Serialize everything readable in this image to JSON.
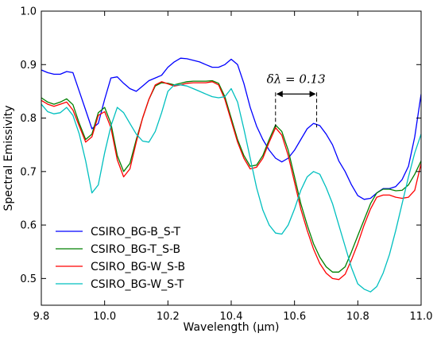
{
  "chart_data": {
    "type": "line",
    "title": "",
    "xlabel": "Wavelength (μm)",
    "ylabel": "Spectral Emissivity",
    "xlim": [
      9.8,
      11.0
    ],
    "ylim": [
      0.45,
      1.0
    ],
    "xticks": [
      9.8,
      10.0,
      10.2,
      10.4,
      10.6,
      10.8,
      11.0
    ],
    "xtick_labels": [
      "9.8",
      "10.0",
      "10.2",
      "10.4",
      "10.6",
      "10.8",
      "11.0"
    ],
    "yticks": [
      0.5,
      0.6,
      0.7,
      0.8,
      0.9,
      1.0
    ],
    "ytick_labels": [
      "0.5",
      "0.6",
      "0.7",
      "0.8",
      "0.9",
      "1.0"
    ],
    "grid": false,
    "legend_position": "lower-left",
    "annotation": {
      "text": "δλ = 0.13",
      "x_start": 10.54,
      "x_end": 10.67,
      "y": 0.845
    },
    "series": [
      {
        "name": "CSIRO_BG-B_S-T",
        "color": "#0000ff",
        "x": [
          9.8,
          9.82,
          9.84,
          9.86,
          9.88,
          9.9,
          9.92,
          9.94,
          9.96,
          9.98,
          10.0,
          10.02,
          10.04,
          10.06,
          10.08,
          10.1,
          10.12,
          10.14,
          10.16,
          10.18,
          10.2,
          10.22,
          10.24,
          10.26,
          10.28,
          10.3,
          10.32,
          10.34,
          10.36,
          10.38,
          10.4,
          10.42,
          10.44,
          10.46,
          10.48,
          10.5,
          10.52,
          10.54,
          10.56,
          10.58,
          10.6,
          10.62,
          10.64,
          10.66,
          10.68,
          10.7,
          10.72,
          10.74,
          10.76,
          10.78,
          10.8,
          10.82,
          10.84,
          10.86,
          10.88,
          10.9,
          10.92,
          10.94,
          10.96,
          10.98,
          11.0
        ],
        "y": [
          0.89,
          0.885,
          0.882,
          0.882,
          0.887,
          0.885,
          0.85,
          0.815,
          0.78,
          0.79,
          0.835,
          0.875,
          0.877,
          0.865,
          0.855,
          0.85,
          0.86,
          0.87,
          0.875,
          0.88,
          0.895,
          0.905,
          0.912,
          0.911,
          0.908,
          0.905,
          0.9,
          0.895,
          0.895,
          0.9,
          0.91,
          0.9,
          0.865,
          0.82,
          0.785,
          0.76,
          0.74,
          0.725,
          0.718,
          0.725,
          0.74,
          0.76,
          0.78,
          0.79,
          0.786,
          0.77,
          0.75,
          0.72,
          0.7,
          0.675,
          0.655,
          0.648,
          0.65,
          0.66,
          0.668,
          0.668,
          0.672,
          0.685,
          0.71,
          0.765,
          0.845
        ]
      },
      {
        "name": "CSIRO_BG-T_S-B",
        "color": "#008000",
        "x": [
          9.8,
          9.82,
          9.84,
          9.86,
          9.88,
          9.9,
          9.92,
          9.94,
          9.96,
          9.98,
          10.0,
          10.02,
          10.04,
          10.06,
          10.08,
          10.1,
          10.12,
          10.14,
          10.16,
          10.18,
          10.2,
          10.22,
          10.24,
          10.26,
          10.28,
          10.3,
          10.32,
          10.34,
          10.36,
          10.38,
          10.4,
          10.42,
          10.44,
          10.46,
          10.48,
          10.5,
          10.52,
          10.54,
          10.56,
          10.58,
          10.6,
          10.62,
          10.64,
          10.66,
          10.68,
          10.7,
          10.72,
          10.74,
          10.76,
          10.78,
          10.8,
          10.82,
          10.84,
          10.86,
          10.88,
          10.9,
          10.92,
          10.94,
          10.96,
          10.98,
          11.0
        ],
        "y": [
          0.838,
          0.83,
          0.826,
          0.83,
          0.836,
          0.825,
          0.79,
          0.76,
          0.77,
          0.81,
          0.82,
          0.79,
          0.73,
          0.7,
          0.715,
          0.76,
          0.8,
          0.835,
          0.86,
          0.866,
          0.865,
          0.862,
          0.865,
          0.868,
          0.869,
          0.869,
          0.869,
          0.87,
          0.865,
          0.84,
          0.8,
          0.76,
          0.73,
          0.71,
          0.712,
          0.73,
          0.76,
          0.787,
          0.775,
          0.74,
          0.69,
          0.64,
          0.6,
          0.565,
          0.54,
          0.522,
          0.512,
          0.512,
          0.522,
          0.55,
          0.58,
          0.61,
          0.64,
          0.66,
          0.667,
          0.667,
          0.664,
          0.665,
          0.675,
          0.695,
          0.72
        ]
      },
      {
        "name": "CSIRO_BG-W_S-B",
        "color": "#ff0000",
        "x": [
          9.8,
          9.82,
          9.84,
          9.86,
          9.88,
          9.9,
          9.92,
          9.94,
          9.96,
          9.98,
          10.0,
          10.02,
          10.04,
          10.06,
          10.08,
          10.1,
          10.12,
          10.14,
          10.16,
          10.18,
          10.2,
          10.22,
          10.24,
          10.26,
          10.28,
          10.3,
          10.32,
          10.34,
          10.36,
          10.38,
          10.4,
          10.42,
          10.44,
          10.46,
          10.48,
          10.5,
          10.52,
          10.54,
          10.56,
          10.58,
          10.6,
          10.62,
          10.64,
          10.66,
          10.68,
          10.7,
          10.72,
          10.74,
          10.76,
          10.78,
          10.8,
          10.82,
          10.84,
          10.86,
          10.88,
          10.9,
          10.92,
          10.94,
          10.96,
          10.98,
          11.0
        ],
        "y": [
          0.833,
          0.826,
          0.822,
          0.826,
          0.83,
          0.815,
          0.785,
          0.755,
          0.765,
          0.805,
          0.812,
          0.782,
          0.722,
          0.69,
          0.705,
          0.755,
          0.8,
          0.835,
          0.862,
          0.868,
          0.864,
          0.86,
          0.862,
          0.865,
          0.866,
          0.866,
          0.866,
          0.868,
          0.862,
          0.835,
          0.795,
          0.755,
          0.725,
          0.705,
          0.708,
          0.725,
          0.755,
          0.782,
          0.768,
          0.73,
          0.68,
          0.63,
          0.59,
          0.555,
          0.528,
          0.51,
          0.5,
          0.498,
          0.508,
          0.535,
          0.565,
          0.6,
          0.63,
          0.652,
          0.656,
          0.656,
          0.652,
          0.65,
          0.652,
          0.665,
          0.715
        ]
      },
      {
        "name": "CSIRO_BG-W_S-T",
        "color": "#00bfbf",
        "x": [
          9.8,
          9.82,
          9.84,
          9.86,
          9.88,
          9.9,
          9.92,
          9.94,
          9.96,
          9.98,
          10.0,
          10.02,
          10.04,
          10.06,
          10.08,
          10.1,
          10.12,
          10.14,
          10.16,
          10.18,
          10.2,
          10.22,
          10.24,
          10.26,
          10.28,
          10.3,
          10.32,
          10.34,
          10.36,
          10.38,
          10.4,
          10.42,
          10.44,
          10.46,
          10.48,
          10.5,
          10.52,
          10.54,
          10.56,
          10.58,
          10.6,
          10.62,
          10.64,
          10.66,
          10.68,
          10.7,
          10.72,
          10.74,
          10.76,
          10.78,
          10.8,
          10.82,
          10.84,
          10.86,
          10.88,
          10.9,
          10.92,
          10.94,
          10.96,
          10.98,
          11.0
        ],
        "y": [
          0.826,
          0.812,
          0.808,
          0.81,
          0.82,
          0.805,
          0.77,
          0.72,
          0.66,
          0.675,
          0.735,
          0.785,
          0.82,
          0.81,
          0.79,
          0.77,
          0.757,
          0.755,
          0.775,
          0.81,
          0.85,
          0.862,
          0.862,
          0.86,
          0.855,
          0.85,
          0.845,
          0.84,
          0.838,
          0.84,
          0.855,
          0.83,
          0.78,
          0.725,
          0.67,
          0.628,
          0.6,
          0.585,
          0.583,
          0.6,
          0.63,
          0.665,
          0.69,
          0.7,
          0.695,
          0.67,
          0.64,
          0.6,
          0.56,
          0.52,
          0.49,
          0.48,
          0.475,
          0.485,
          0.51,
          0.545,
          0.59,
          0.64,
          0.69,
          0.735,
          0.77
        ]
      }
    ]
  }
}
